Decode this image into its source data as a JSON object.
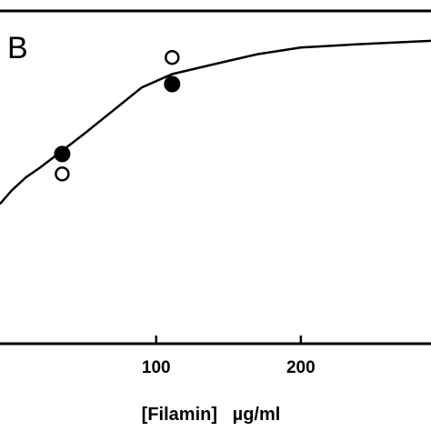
{
  "chart_data": {
    "type": "scatter",
    "panel_label": "B",
    "xlabel": "[Filamin]   µg/ml",
    "ylabel": "",
    "x_ticks": [
      100,
      200
    ],
    "xlim": [
      -8,
      290
    ],
    "ylim": [
      0,
      1
    ],
    "grid": false,
    "series": [
      {
        "marker": "filled-circle",
        "x": [
          35,
          111
        ],
        "y": [
          0.57,
          0.78
        ]
      },
      {
        "marker": "open-circle",
        "x": [
          35,
          111
        ],
        "y": [
          0.51,
          0.86
        ]
      }
    ],
    "fit_curve": {
      "type": "saturation",
      "points": [
        [
          -8,
          0.42
        ],
        [
          0,
          0.46
        ],
        [
          10,
          0.5
        ],
        [
          20,
          0.53
        ],
        [
          35,
          0.58
        ],
        [
          50,
          0.63
        ],
        [
          70,
          0.7
        ],
        [
          90,
          0.77
        ],
        [
          111,
          0.81
        ],
        [
          140,
          0.84
        ],
        [
          170,
          0.87
        ],
        [
          200,
          0.89
        ],
        [
          240,
          0.9
        ],
        [
          290,
          0.91
        ]
      ]
    }
  }
}
